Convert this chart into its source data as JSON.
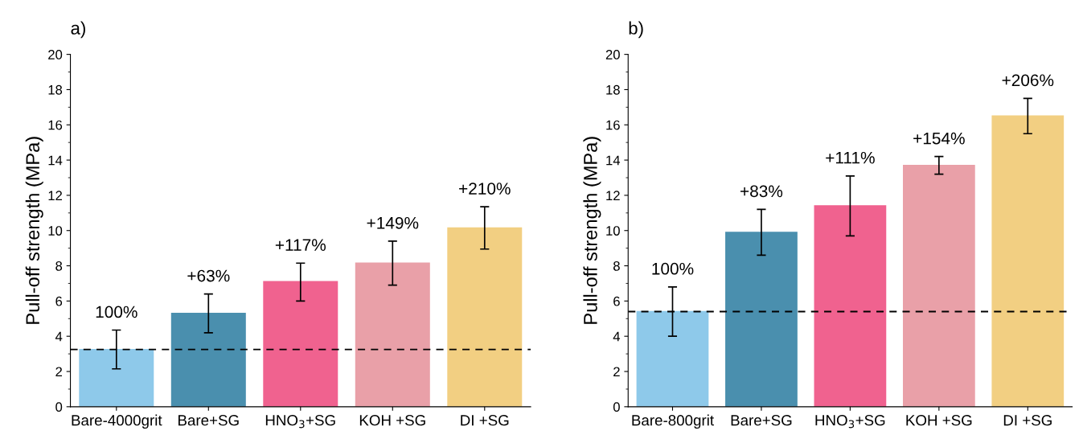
{
  "chart_data": [
    {
      "type": "bar",
      "title": "a)",
      "ylabel": "Pull-off strength (MPa)",
      "categories": [
        "Bare-4000grit",
        "Bare+SG",
        "HNO$_{3}$+SG",
        "KOH +SG",
        "DI +SG"
      ],
      "values": [
        3.25,
        5.3,
        7.1,
        8.15,
        10.15
      ],
      "errors": [
        [
          2.15,
          4.35
        ],
        [
          4.2,
          6.4
        ],
        [
          6.0,
          8.15
        ],
        [
          6.9,
          9.4
        ],
        [
          8.95,
          11.35
        ]
      ],
      "colors": [
        "#8ec9ea",
        "#4a8fae",
        "#f0628f",
        "#e9a0a8",
        "#f2cf82"
      ],
      "annotations": [
        {
          "text": "100%",
          "x": "Bare-4000grit",
          "y": 4.35
        },
        {
          "text": "+63%",
          "x": "Bare+SG",
          "y": 6.4
        },
        {
          "text": "+117%",
          "x": "HNO$_{3}$+SG",
          "y": 8.15
        },
        {
          "text": "+149%",
          "x": "KOH +SG",
          "y": 9.4
        },
        {
          "text": "+210%",
          "x": "DI +SG",
          "y": 11.35
        }
      ],
      "ylim": [
        0,
        20
      ],
      "yticks": [
        0,
        2,
        4,
        6,
        8,
        10,
        12,
        14,
        16,
        18,
        20
      ],
      "ref_lines": [
        {
          "axis": "y",
          "value": 3.25,
          "color": "#000000",
          "line_style": "dashed"
        }
      ],
      "grid": false
    },
    {
      "type": "bar",
      "title": "b)",
      "ylabel": "Pull-off strength (MPa)",
      "categories": [
        "Bare-800grit",
        "Bare+SG",
        "HNO$_{3}$+SG",
        "KOH +SG",
        "DI +SG"
      ],
      "values": [
        5.4,
        9.9,
        11.4,
        13.7,
        16.5
      ],
      "errors": [
        [
          4.0,
          6.8
        ],
        [
          8.6,
          11.2
        ],
        [
          9.7,
          13.1
        ],
        [
          13.2,
          14.2
        ],
        [
          15.5,
          17.5
        ]
      ],
      "colors": [
        "#8ec9ea",
        "#4a8fae",
        "#f0628f",
        "#e9a0a8",
        "#f2cf82"
      ],
      "annotations": [
        {
          "text": "100%",
          "x": "Bare-800grit",
          "y": 6.8
        },
        {
          "text": "+83%",
          "x": "Bare+SG",
          "y": 11.2
        },
        {
          "text": "+111%",
          "x": "HNO$_{3}$+SG",
          "y": 13.1
        },
        {
          "text": "+154%",
          "x": "KOH +SG",
          "y": 14.2
        },
        {
          "text": "+206%",
          "x": "DI +SG",
          "y": 17.5
        }
      ],
      "ylim": [
        0,
        20
      ],
      "yticks": [
        0,
        2,
        4,
        6,
        8,
        10,
        12,
        14,
        16,
        18,
        20
      ],
      "ref_lines": [
        {
          "axis": "y",
          "value": 5.4,
          "color": "#000000",
          "line_style": "dashed"
        }
      ],
      "grid": false
    }
  ]
}
